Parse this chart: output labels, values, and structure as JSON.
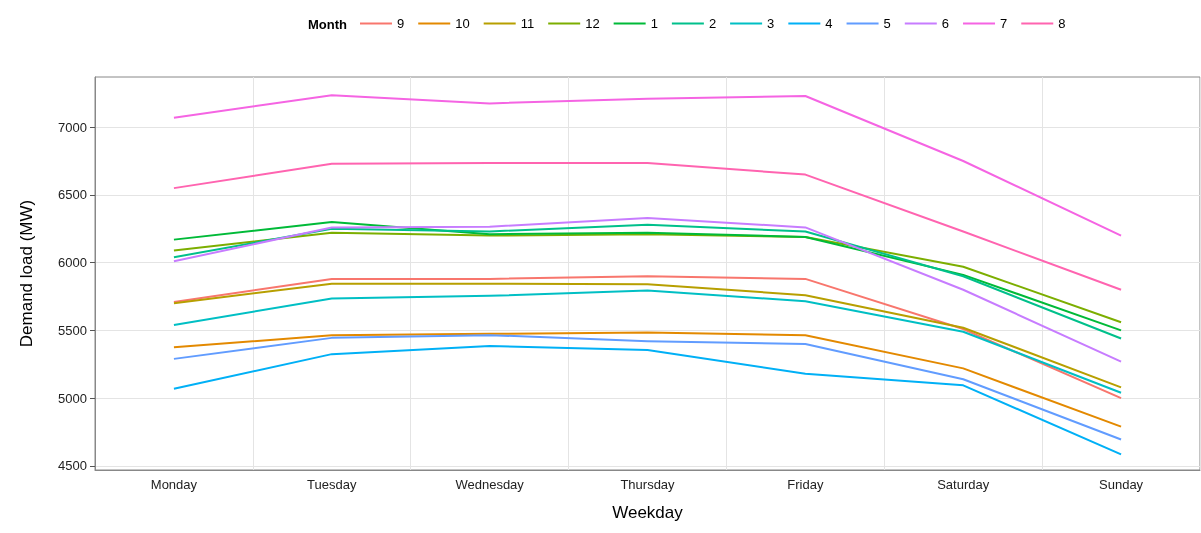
{
  "chart_data": {
    "type": "line",
    "xlabel": "Weekday",
    "ylabel": "Demand load (MW)",
    "legend_title": "Month",
    "legend": "top",
    "grid": true,
    "categories": [
      "Monday",
      "Tuesday",
      "Wednesday",
      "Thursday",
      "Friday",
      "Saturday",
      "Sunday"
    ],
    "ylim": [
      4470,
      7370
    ],
    "yticks": [
      4500,
      5000,
      5500,
      6000,
      6500,
      7000
    ],
    "series": [
      {
        "name": "9",
        "color": "#f8766d",
        "values": [
          5710,
          5880,
          5880,
          5900,
          5880,
          5510,
          5000
        ]
      },
      {
        "name": "10",
        "color": "#e38900",
        "values": [
          5375,
          5465,
          5475,
          5485,
          5465,
          5220,
          4790
        ]
      },
      {
        "name": "11",
        "color": "#b79f00",
        "values": [
          5700,
          5845,
          5845,
          5840,
          5760,
          5520,
          5080
        ]
      },
      {
        "name": "12",
        "color": "#7cae00",
        "values": [
          6090,
          6220,
          6200,
          6210,
          6190,
          5970,
          5560
        ]
      },
      {
        "name": "1",
        "color": "#00ba38",
        "values": [
          6170,
          6300,
          6210,
          6220,
          6190,
          5910,
          5500
        ]
      },
      {
        "name": "2",
        "color": "#00c08b",
        "values": [
          6040,
          6250,
          6230,
          6280,
          6230,
          5900,
          5440
        ]
      },
      {
        "name": "3",
        "color": "#00bfc4",
        "values": [
          5540,
          5735,
          5755,
          5795,
          5715,
          5490,
          5040
        ]
      },
      {
        "name": "4",
        "color": "#00b0f6",
        "values": [
          5070,
          5325,
          5385,
          5355,
          5180,
          5095,
          4585
        ]
      },
      {
        "name": "5",
        "color": "#619cff",
        "values": [
          5290,
          5445,
          5465,
          5420,
          5400,
          5140,
          4695
        ]
      },
      {
        "name": "6",
        "color": "#c77cff",
        "values": [
          6010,
          6260,
          6265,
          6330,
          6260,
          5800,
          5270
        ]
      },
      {
        "name": "7",
        "color": "#f564e3",
        "values": [
          7070,
          7235,
          7175,
          7210,
          7230,
          6750,
          6200
        ]
      },
      {
        "name": "8",
        "color": "#ff64b0",
        "values": [
          6550,
          6730,
          6735,
          6735,
          6650,
          6230,
          5800
        ]
      }
    ]
  }
}
